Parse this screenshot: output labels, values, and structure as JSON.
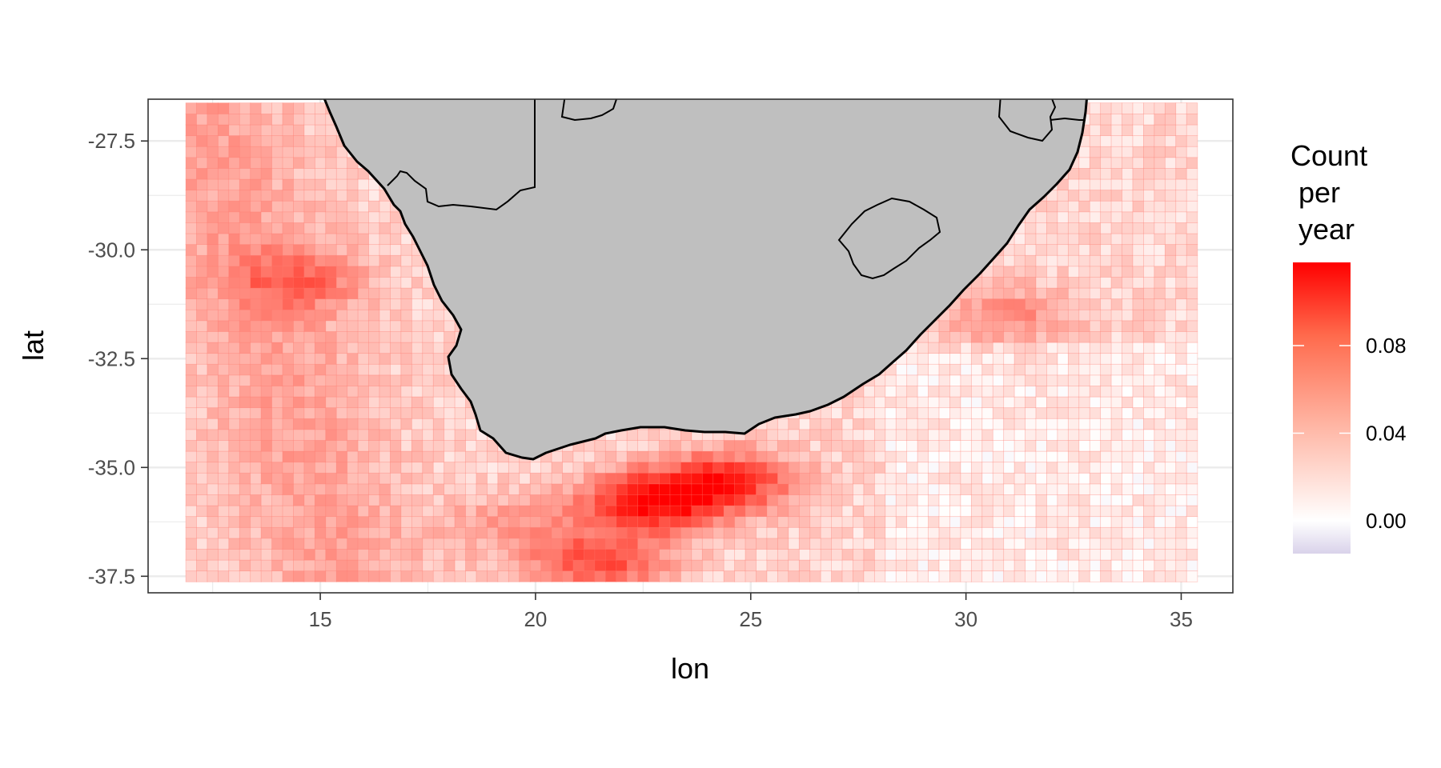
{
  "chart_data": {
    "type": "heatmap",
    "title": "",
    "xlabel": "lon",
    "ylabel": "lat",
    "xlim": [
      11,
      36.2
    ],
    "ylim": [
      -37.88,
      -26.54
    ],
    "x_ticks": [
      {
        "value": 15,
        "label": "15"
      },
      {
        "value": 20,
        "label": "20"
      },
      {
        "value": 25,
        "label": "25"
      },
      {
        "value": 30,
        "label": "30"
      },
      {
        "value": 35,
        "label": "35"
      }
    ],
    "y_ticks": [
      {
        "value": -27.5,
        "label": "-27.5"
      },
      {
        "value": -30,
        "label": "-30.0"
      },
      {
        "value": -32.5,
        "label": "-32.5"
      },
      {
        "value": -35,
        "label": "-35.0"
      },
      {
        "value": -37.5,
        "label": "-37.5"
      }
    ],
    "grid": true,
    "grid_extent": {
      "lon": [
        12,
        35.25
      ],
      "lat": [
        -37.5,
        -26.75
      ],
      "cell_deg": 0.25
    },
    "value_range": [
      -0.015,
      0.118
    ],
    "hotspots": [
      {
        "lon": 22.7,
        "lat": -35.8,
        "value": 0.115
      },
      {
        "lon": 24.5,
        "lat": -35.3,
        "value": 0.095
      },
      {
        "lon": 21.5,
        "lat": -37.2,
        "value": 0.085
      },
      {
        "lon": 14.5,
        "lat": -30.7,
        "value": 0.06
      },
      {
        "lon": 31.0,
        "lat": -31.5,
        "value": 0.055
      },
      {
        "lon": 19.5,
        "lat": -36.3,
        "value": 0.05
      }
    ],
    "legend": {
      "title_lines": [
        "Count",
        " per",
        " year"
      ],
      "ticks": [
        {
          "value": 0.08,
          "label": "0.08"
        },
        {
          "value": 0.04,
          "label": "0.04"
        },
        {
          "value": 0.0,
          "label": "0.00"
        }
      ],
      "placement": "right"
    },
    "colors": {
      "high": "#ff0000",
      "mid": "#ffffff",
      "low": "#d9d2ea",
      "land": "#bfbfbf",
      "background": "#ffffff",
      "gridline": "#ebebeb"
    }
  }
}
